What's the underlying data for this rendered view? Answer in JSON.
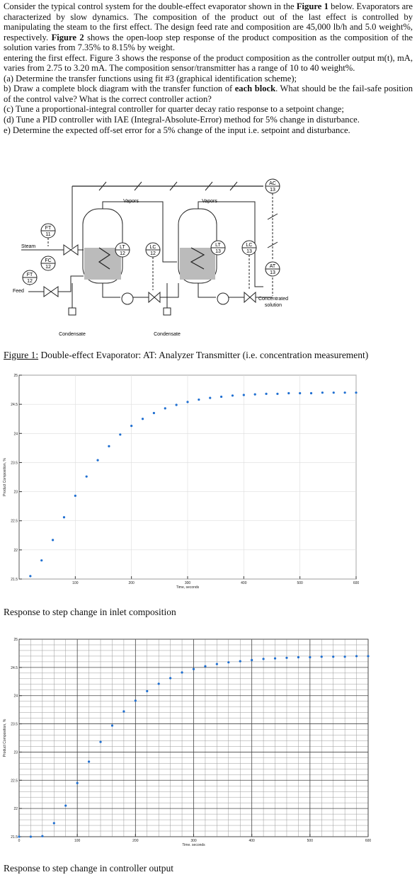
{
  "paragraphs": [
    [
      "Consider the typical control system for the double-effect evaporator shown in the ",
      {
        "text": "Figure 1",
        "bold": true
      },
      " below. Evaporators are characterized by slow dynamics. The composition of the product out of the last effect is controlled by manipulating the steam to the first effect. The design feed rate and composition are 45,000 lb/h and 5.0 weight%, respectively. ",
      {
        "text": "Figure 2",
        "bold": true
      },
      " shows the open-loop step response of the product composition as the composition of the solution varies from 7.35% to 8.15% by weight."
    ],
    [
      "entering the first effect. Figure 3 shows the response of the product composition as the controller output m(t), mA, varies from 2.75 to 3.20 mA. The composition sensor/transmitter has a range of 10 to 40 weight%."
    ],
    [
      "(a) Determine the transfer functions using fit #3 (graphical identification scheme);"
    ],
    [
      "b) Draw a complete block diagram with the transfer function of ",
      {
        "text": "each block",
        "bold": true
      },
      ". What should be the fail-safe position of the control valve? What is the correct controller action?"
    ],
    [
      "(c) Tune a proportional-integral controller for quarter decay ratio response to a setpoint change;"
    ],
    [
      "(d) Tune a PID controller with IAE (Integral-Absolute-Error) method for 5% change in disturbance."
    ],
    [
      "e)  Determine the expected off-set error for a 5% change of the input i.e. setpoint and disturbance."
    ]
  ],
  "diagram": {
    "instruments": [
      {
        "tag": "FT",
        "number": "11"
      },
      {
        "tag": "FC",
        "number": "12"
      },
      {
        "tag": "FT",
        "number": "12"
      },
      {
        "tag": "LT",
        "number": "12"
      },
      {
        "tag": "LC",
        "number": "12"
      },
      {
        "tag": "LT",
        "number": "13"
      },
      {
        "tag": "LC",
        "number": "13"
      },
      {
        "tag": "AC",
        "number": "13"
      },
      {
        "tag": "AT",
        "number": "13"
      }
    ],
    "labels": [
      "Steam",
      "Feed",
      "Vapors",
      "Vapors",
      "Condensate",
      "Condensate",
      "Concentrated",
      "solution"
    ]
  },
  "figure_caption": {
    "label": "Figure 1:",
    "text": " Double-effect Evaporator: AT: Analyzer Transmitter (i.e. concentration measurement)"
  },
  "chart_data": [
    {
      "type": "scatter",
      "x_label": "Time, seconds",
      "y_label": "Product Composition, %",
      "caption": "Response to step change in inlet composition",
      "color": "#1f6fd1",
      "x": [
        20,
        40,
        60,
        80,
        100,
        120,
        140,
        160,
        180,
        200,
        220,
        240,
        260,
        280,
        300,
        320,
        340,
        360,
        380,
        400,
        420,
        440,
        460,
        480,
        500,
        520,
        540,
        560,
        580,
        600
      ],
      "values": [
        21.55,
        21.82,
        22.17,
        22.56,
        22.93,
        23.26,
        23.54,
        23.78,
        23.98,
        24.13,
        24.25,
        24.35,
        24.43,
        24.49,
        24.54,
        24.58,
        24.61,
        24.63,
        24.65,
        24.66,
        24.67,
        24.68,
        24.68,
        24.69,
        24.69,
        24.69,
        24.7,
        24.7,
        24.7,
        24.7
      ],
      "xlim": [
        0,
        600
      ],
      "ylim": [
        21.5,
        25
      ],
      "xticks": [
        100,
        200,
        300,
        400,
        500,
        600
      ],
      "yticks": [
        21.5,
        22,
        22.5,
        23,
        23.5,
        24,
        24.5,
        25
      ],
      "grid": true,
      "minor_grid": false
    },
    {
      "type": "scatter",
      "x_label": "Time, seconds",
      "y_label": "Product Composition, %",
      "caption": "Response to step change in controller output",
      "color": "#1f6fd1",
      "x": [
        0,
        20,
        40,
        60,
        80,
        100,
        120,
        140,
        160,
        180,
        200,
        220,
        240,
        260,
        280,
        300,
        320,
        340,
        360,
        380,
        400,
        420,
        440,
        460,
        480,
        500,
        520,
        540,
        560,
        580,
        600
      ],
      "values": [
        21.5,
        21.5,
        21.51,
        21.74,
        22.05,
        22.45,
        22.83,
        23.18,
        23.47,
        23.72,
        23.91,
        24.08,
        24.21,
        24.31,
        24.41,
        24.47,
        24.52,
        24.56,
        24.59,
        24.61,
        24.63,
        24.65,
        24.66,
        24.67,
        24.68,
        24.68,
        24.69,
        24.69,
        24.69,
        24.7,
        24.7
      ],
      "xlim": [
        0,
        600
      ],
      "ylim": [
        21.5,
        25
      ],
      "xticks": [
        0,
        100,
        200,
        300,
        400,
        500,
        600
      ],
      "yticks": [
        21.5,
        22,
        22.5,
        23,
        23.5,
        24,
        24.5,
        25
      ],
      "grid": true,
      "minor_grid": true
    }
  ]
}
